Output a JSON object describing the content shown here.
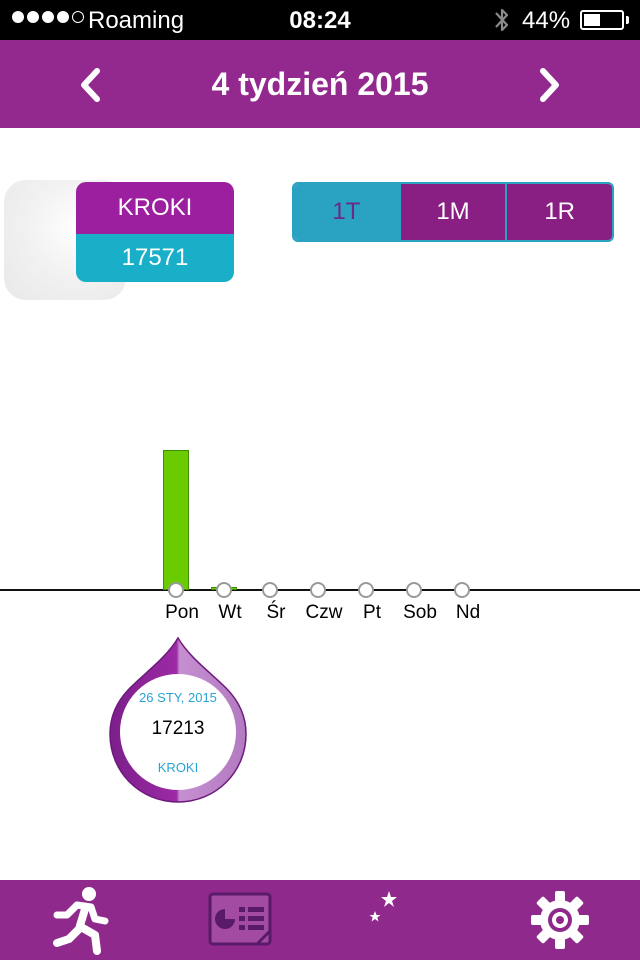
{
  "status_bar": {
    "carrier": "Roaming",
    "time": "08:24",
    "battery_percent": "44%",
    "battery_level": 0.44,
    "signal_bars_filled": 4,
    "signal_bars_total": 5,
    "icons": [
      "signal-dots-icon",
      "bluetooth-icon",
      "battery-icon"
    ]
  },
  "header": {
    "title": "4 tydzień 2015",
    "prev_icon": "chevron-left-icon",
    "next_icon": "chevron-right-icon",
    "background_color": "#93298f"
  },
  "metric": {
    "label": "KROKI",
    "value": "17571",
    "label_color": "#9c1fa0",
    "value_color": "#19afc9"
  },
  "period_selector": {
    "options": [
      "1T",
      "1M",
      "1R"
    ],
    "selected": "1T"
  },
  "chart_data": {
    "type": "bar",
    "categories": [
      "Pon",
      "Wt",
      "Śr",
      "Czw",
      "Pt",
      "Sob",
      "Nd"
    ],
    "values": [
      17213,
      358,
      0,
      0,
      0,
      0,
      0
    ],
    "bar_color": "#6acb00",
    "grid": false
  },
  "tooltip": {
    "date": "26 STY, 2015",
    "value": "17213",
    "unit": "KROKI"
  },
  "tab_bar": {
    "tabs": [
      {
        "icon": "running-person-icon",
        "active": false
      },
      {
        "icon": "report-list-icon",
        "active": true
      },
      {
        "icon": "moon-stars-icon",
        "active": false
      },
      {
        "icon": "gear-icon",
        "active": false
      }
    ],
    "background_color": "#8f2a8c"
  }
}
